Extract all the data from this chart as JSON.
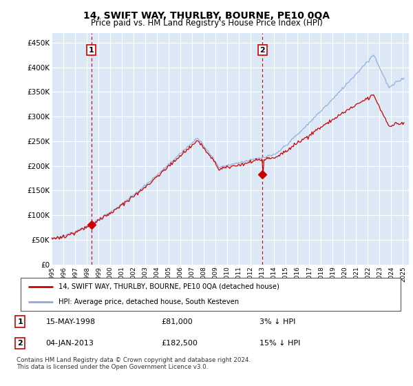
{
  "title": "14, SWIFT WAY, THURLBY, BOURNE, PE10 0QA",
  "subtitle": "Price paid vs. HM Land Registry's House Price Index (HPI)",
  "xlim_start": 1995.0,
  "xlim_end": 2025.5,
  "ylim_bottom": 0,
  "ylim_top": 470000,
  "hpi_color": "#88aadd",
  "price_color": "#cc0000",
  "vline_color": "#cc0000",
  "grid_color": "#cccccc",
  "plot_bg_color": "#dce8f5",
  "sale1_x": 1998.38,
  "sale1_y": 81000,
  "sale2_x": 2013.01,
  "sale2_y": 182500,
  "legend_line1": "14, SWIFT WAY, THURLBY, BOURNE, PE10 0QA (detached house)",
  "legend_line2": "HPI: Average price, detached house, South Kesteven",
  "table_row1_num": "1",
  "table_row1_date": "15-MAY-1998",
  "table_row1_price": "£81,000",
  "table_row1_hpi": "3% ↓ HPI",
  "table_row2_num": "2",
  "table_row2_date": "04-JAN-2013",
  "table_row2_price": "£182,500",
  "table_row2_hpi": "15% ↓ HPI",
  "footer": "Contains HM Land Registry data © Crown copyright and database right 2024.\nThis data is licensed under the Open Government Licence v3.0.",
  "yticks": [
    0,
    50000,
    100000,
    150000,
    200000,
    250000,
    300000,
    350000,
    400000,
    450000
  ],
  "ytick_labels": [
    "£0",
    "£50K",
    "£100K",
    "£150K",
    "£200K",
    "£250K",
    "£300K",
    "£350K",
    "£400K",
    "£450K"
  ]
}
